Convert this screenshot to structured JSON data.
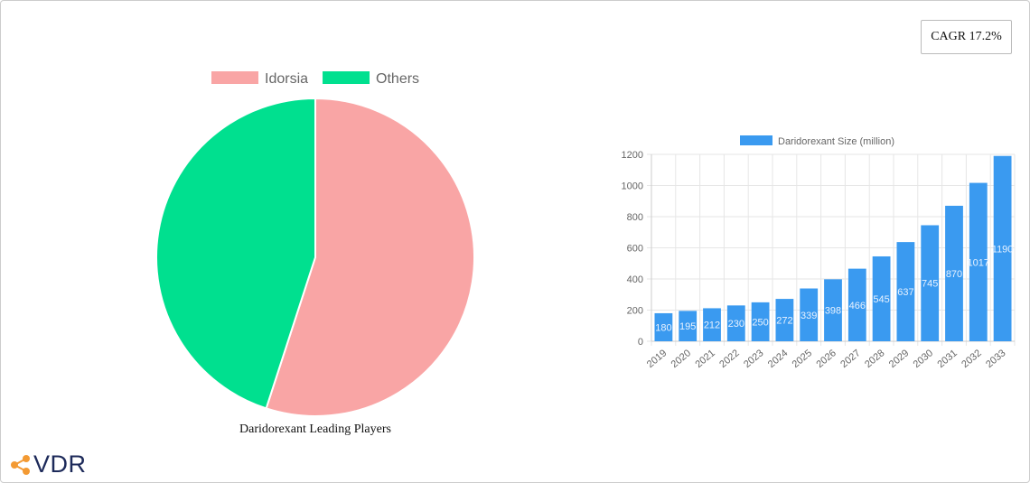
{
  "cagr_label": "CAGR 17.2%",
  "logo": "VDR",
  "chart_data": [
    {
      "type": "pie",
      "title": "Daridorexant Leading Players",
      "legend_position": "top",
      "categories": [
        "Idorsia",
        "Others"
      ],
      "values": [
        55,
        45
      ],
      "colors": [
        "#f9a5a5",
        "#00e08f"
      ]
    },
    {
      "type": "bar",
      "legend_position": "top",
      "categories": [
        "2019",
        "2020",
        "2021",
        "2022",
        "2023",
        "2024",
        "2025",
        "2026",
        "2027",
        "2028",
        "2029",
        "2030",
        "2031",
        "2032",
        "2033"
      ],
      "series": [
        {
          "name": "Daridorexant Size (million)",
          "values": [
            180,
            195,
            212,
            230,
            250,
            272,
            339,
            398,
            466,
            545,
            637,
            745,
            870,
            1017,
            1190
          ],
          "color": "#3a9af0"
        }
      ],
      "ylim": [
        0,
        1200
      ],
      "yticks": [
        0,
        200,
        400,
        600,
        800,
        1000,
        1200
      ],
      "grid": true,
      "data_labels": true
    }
  ]
}
